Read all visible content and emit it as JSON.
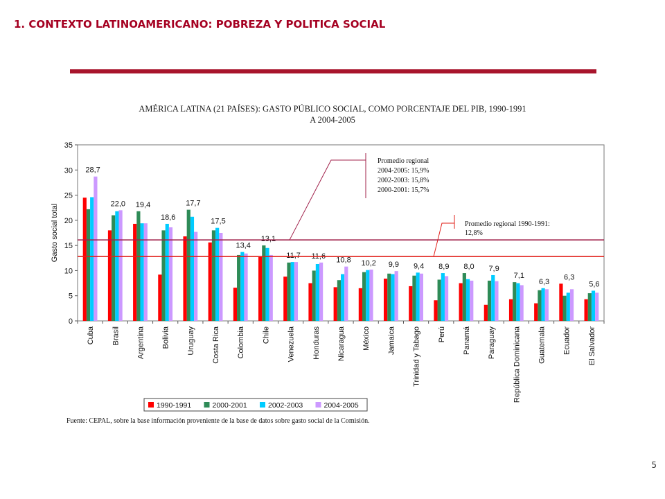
{
  "slide": {
    "title": "1. CONTEXTO LATINOAMERICANO: POBREZA Y POLITICA SOCIAL",
    "page_number": "5",
    "accent_color": "#a50021",
    "rule_color": "#a8152c"
  },
  "chart_data": {
    "type": "bar",
    "title_line1": "AMÉRICA LATINA (21 PAÍSES): GASTO PÚBLICO SOCIAL, COMO PORCENTAJE DEL PIB, 1990-1991",
    "title_line2": "A 2004-2005",
    "ylabel": "Gasto social total",
    "xlabel": "",
    "ylim": [
      0,
      35
    ],
    "yticks": [
      "0",
      "5",
      "10",
      "15",
      "20",
      "25",
      "30",
      "35"
    ],
    "grid": false,
    "legend_position": "bottom",
    "categories": [
      "Cuba",
      "Brasil",
      "Argentina",
      "Bolivia",
      "Uruguay",
      "Costa Rica",
      "Colombia",
      "Chile",
      "Venezuela",
      "Honduras",
      "Nicaragua",
      "México",
      "Jamaica",
      "Trinidad y Tabago",
      "Perú",
      "Panamá",
      "Paraguay",
      "República Dominicana",
      "Guatemala",
      "Ecuador",
      "El Salvador"
    ],
    "series": [
      {
        "name": "1990-1991",
        "color": "#ff0000",
        "values": [
          24.5,
          18.0,
          19.3,
          9.2,
          16.8,
          15.6,
          6.6,
          12.7,
          8.8,
          7.5,
          6.7,
          6.5,
          8.4,
          6.9,
          4.1,
          7.5,
          3.2,
          4.3,
          3.5,
          7.4,
          4.3
        ]
      },
      {
        "name": "2000-2001",
        "color": "#2e8b57",
        "values": [
          22.2,
          21.0,
          21.8,
          18.0,
          22.1,
          18.0,
          13.1,
          15.0,
          11.6,
          10.0,
          8.1,
          9.7,
          9.4,
          9.0,
          8.2,
          9.5,
          8.0,
          7.7,
          6.1,
          5.0,
          5.5
        ]
      },
      {
        "name": "2002-2003",
        "color": "#00ccff",
        "values": [
          24.6,
          21.8,
          19.4,
          19.3,
          20.7,
          18.5,
          13.7,
          14.5,
          11.7,
          11.3,
          9.3,
          10.1,
          9.3,
          9.6,
          9.5,
          8.3,
          9.1,
          7.5,
          6.5,
          5.6,
          6.0
        ]
      },
      {
        "name": "2004-2005",
        "color": "#cc99ff",
        "values": [
          28.7,
          22.0,
          19.4,
          18.6,
          17.7,
          17.5,
          13.4,
          13.1,
          11.7,
          11.6,
          10.8,
          10.2,
          9.9,
          9.4,
          8.9,
          8.0,
          7.9,
          7.1,
          6.3,
          6.3,
          5.6
        ]
      }
    ],
    "data_labels": [
      "28,7",
      "22,0",
      "19,4",
      "18,6",
      "17,7",
      "17,5",
      "13,4",
      "13,1",
      "11,7",
      "11,6",
      "10,8",
      "10,2",
      "9,9",
      "9,4",
      "8,9",
      "8,0",
      "7,9",
      "7,1",
      "6,3",
      "6,3",
      "5,6"
    ],
    "reference_lines": [
      {
        "value": 16.1,
        "color": "#a0204a"
      },
      {
        "value": 12.8,
        "color": "#e0201a"
      }
    ],
    "annotations": [
      {
        "lines": [
          "Promedio regional",
          "2004-2005: 15,9%",
          "2002-2003: 15,8%",
          "2000-2001: 15,7%"
        ]
      },
      {
        "lines": [
          "Promedio regional 1990-1991:",
          "12,8%"
        ]
      }
    ],
    "source": "Fuente: CEPAL, sobre la base información proveniente de la base de datos sobre gasto social de la Comisión."
  }
}
